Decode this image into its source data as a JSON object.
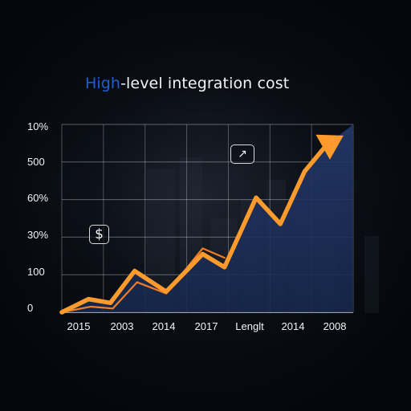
{
  "title_prefix": "High",
  "title_suffix": "-level integration cost",
  "icons": [
    {
      "name": "dollar-icon",
      "glyph": "$"
    },
    {
      "name": "chart-arrow-icon",
      "glyph": "↗"
    }
  ],
  "colors": {
    "accent_blue": "#1f5fcf",
    "accent_orange": "#ff9a2d",
    "area_fill": "#17284d",
    "grid": "#ffffff",
    "text": "#f4f4f4"
  },
  "chart_data": {
    "type": "line",
    "title": "High-level integration cost",
    "categories": [
      "2015",
      "2003",
      "2014",
      "2017",
      "Lenglt",
      "2014",
      "2008"
    ],
    "y_tick_labels": [
      "10%",
      "500",
      "60%",
      "30%",
      "100",
      "0"
    ],
    "y_scale": [
      0,
      5
    ],
    "grid": true,
    "series": [
      {
        "name": "",
        "x": [
          0,
          0.55,
          1.0,
          1.5,
          2.15,
          2.9,
          3.35,
          4.0,
          4.5,
          5.0,
          5.45,
          6.0
        ],
        "y": [
          0.0,
          0.35,
          0.25,
          1.1,
          0.55,
          1.55,
          1.2,
          3.05,
          2.35,
          3.75,
          4.45,
          4.95
        ],
        "style": "orange-arrow"
      },
      {
        "name": "",
        "x": [
          0,
          0.6,
          1.05,
          1.55,
          2.15,
          2.9,
          3.35
        ],
        "y": [
          0.0,
          0.15,
          0.1,
          0.8,
          0.5,
          1.7,
          1.45
        ],
        "style": "orange-thin"
      },
      {
        "name": "",
        "x": [
          0,
          0.55,
          1.0,
          1.5,
          2.15,
          2.9,
          3.35,
          4.0,
          4.5,
          5.0,
          5.45,
          6.0
        ],
        "y": [
          0.0,
          0.35,
          0.25,
          1.1,
          0.55,
          1.55,
          1.2,
          3.05,
          2.35,
          3.75,
          4.45,
          5.0
        ],
        "style": "area"
      }
    ]
  }
}
